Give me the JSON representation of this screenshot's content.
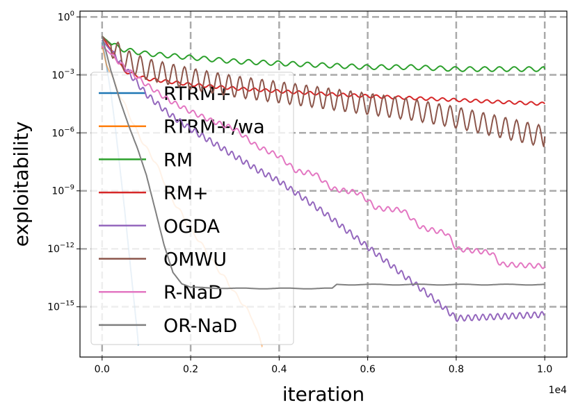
{
  "chart_data": {
    "type": "line",
    "xlabel": "iteration",
    "ylabel": "exploitability",
    "x_offset_label": "1e4",
    "xlim": [
      -0.05,
      1.05
    ],
    "ylog": true,
    "ylim_exponents": [
      -17.6,
      0.3
    ],
    "x_ticks": [
      {
        "value": 0.0,
        "label": "0.0"
      },
      {
        "value": 0.2,
        "label": "0.2"
      },
      {
        "value": 0.4,
        "label": "0.4"
      },
      {
        "value": 0.6,
        "label": "0.6"
      },
      {
        "value": 0.8,
        "label": "0.8"
      },
      {
        "value": 1.0,
        "label": "1.0"
      }
    ],
    "y_ticks": [
      {
        "exp": 0,
        "base": "10",
        "sup": "0"
      },
      {
        "exp": -3,
        "base": "10",
        "sup": "−3"
      },
      {
        "exp": -6,
        "base": "10",
        "sup": "−6"
      },
      {
        "exp": -9,
        "base": "10",
        "sup": "−9"
      },
      {
        "exp": -12,
        "base": "10",
        "sup": "−12"
      },
      {
        "exp": -15,
        "base": "10",
        "sup": "−15"
      }
    ],
    "grid": true,
    "legend_position": "left",
    "series": [
      {
        "name": "RTRM+",
        "color": "#1f77b4",
        "alpha": 0.5,
        "points": [
          [
            0.0,
            -1.2
          ],
          [
            0.01,
            -2.5
          ],
          [
            0.02,
            -4.0
          ],
          [
            0.03,
            -5.8
          ],
          [
            0.04,
            -7.8
          ],
          [
            0.05,
            -9.8
          ],
          [
            0.06,
            -12.0
          ],
          [
            0.07,
            -14.2
          ],
          [
            0.08,
            -16.4
          ],
          [
            0.082,
            -17.0
          ]
        ]
      },
      {
        "name": "RTRM+/wa",
        "color": "#ff7f0e",
        "alpha": 0.5,
        "points": [
          [
            0.0,
            -1.5
          ],
          [
            0.01,
            -2.5
          ],
          [
            0.02,
            -3.0
          ],
          [
            0.04,
            -4.0
          ],
          [
            0.06,
            -5.0
          ],
          [
            0.08,
            -6.0
          ],
          [
            0.1,
            -6.8
          ],
          [
            0.12,
            -7.5
          ],
          [
            0.14,
            -8.5
          ],
          [
            0.16,
            -9.5
          ],
          [
            0.18,
            -10.2
          ],
          [
            0.2,
            -11.0
          ],
          [
            0.22,
            -11.6
          ],
          [
            0.24,
            -12.3
          ],
          [
            0.26,
            -13.0
          ],
          [
            0.28,
            -13.6
          ],
          [
            0.3,
            -14.3
          ],
          [
            0.32,
            -14.9
          ],
          [
            0.34,
            -15.6
          ],
          [
            0.35,
            -16.3
          ],
          [
            0.36,
            -16.9
          ],
          [
            0.362,
            -17.0
          ]
        ]
      },
      {
        "name": "RM",
        "color": "#2ca02c",
        "alpha": 1,
        "points": [
          [
            0.0,
            -1.0
          ],
          [
            0.02,
            -1.4
          ],
          [
            0.05,
            -1.7
          ],
          [
            0.1,
            -1.9
          ],
          [
            0.2,
            -2.1
          ],
          [
            0.3,
            -2.3
          ],
          [
            0.4,
            -2.4
          ],
          [
            0.5,
            -2.5
          ],
          [
            0.6,
            -2.6
          ],
          [
            0.7,
            -2.6
          ],
          [
            0.8,
            -2.7
          ],
          [
            0.9,
            -2.7
          ],
          [
            1.0,
            -2.7
          ]
        ]
      },
      {
        "name": "RM+",
        "color": "#d62728",
        "alpha": 1,
        "points": [
          [
            0.0,
            -1.0
          ],
          [
            0.05,
            -2.8
          ],
          [
            0.1,
            -3.2
          ],
          [
            0.2,
            -3.5
          ],
          [
            0.3,
            -3.7
          ],
          [
            0.4,
            -3.85
          ],
          [
            0.5,
            -3.98
          ],
          [
            0.6,
            -4.1
          ],
          [
            0.7,
            -4.2
          ],
          [
            0.8,
            -4.3
          ],
          [
            0.9,
            -4.4
          ],
          [
            1.0,
            -4.5
          ]
        ]
      },
      {
        "name": "OGDA",
        "color": "#9467bd",
        "alpha": 1,
        "points": [
          [
            0.0,
            -1.2
          ],
          [
            0.05,
            -2.6
          ],
          [
            0.1,
            -4.0
          ],
          [
            0.15,
            -5.0
          ],
          [
            0.2,
            -5.8
          ],
          [
            0.25,
            -6.5
          ],
          [
            0.3,
            -7.2
          ],
          [
            0.35,
            -7.9
          ],
          [
            0.4,
            -8.5
          ],
          [
            0.45,
            -9.3
          ],
          [
            0.5,
            -10.1
          ],
          [
            0.55,
            -11.0
          ],
          [
            0.6,
            -11.9
          ],
          [
            0.65,
            -12.8
          ],
          [
            0.7,
            -13.7
          ],
          [
            0.75,
            -14.6
          ],
          [
            0.8,
            -15.6
          ],
          [
            0.9,
            -15.5
          ],
          [
            1.0,
            -15.4
          ]
        ]
      },
      {
        "name": "OMWU",
        "color": "#8c564b",
        "alpha": 1,
        "points": [
          [
            0.0,
            -1.0
          ],
          [
            0.05,
            -2.2
          ],
          [
            0.1,
            -2.7
          ],
          [
            0.2,
            -3.2
          ],
          [
            0.3,
            -3.6
          ],
          [
            0.4,
            -3.9
          ],
          [
            0.5,
            -4.2
          ],
          [
            0.6,
            -4.5
          ],
          [
            0.7,
            -4.8
          ],
          [
            0.8,
            -5.2
          ],
          [
            0.9,
            -5.7
          ],
          [
            1.0,
            -6.2
          ]
        ]
      },
      {
        "name": "R-NaD",
        "color": "#e377c2",
        "alpha": 1,
        "points": [
          [
            0.0,
            -1.5
          ],
          [
            0.05,
            -2.6
          ],
          [
            0.1,
            -3.5
          ],
          [
            0.15,
            -4.3
          ],
          [
            0.2,
            -4.9
          ],
          [
            0.25,
            -5.4
          ],
          [
            0.3,
            -5.8
          ],
          [
            0.35,
            -6.7
          ],
          [
            0.4,
            -7.2
          ],
          [
            0.44,
            -8.0
          ],
          [
            0.48,
            -8.1
          ],
          [
            0.52,
            -8.9
          ],
          [
            0.58,
            -9.1
          ],
          [
            0.62,
            -9.9
          ],
          [
            0.68,
            -10.0
          ],
          [
            0.72,
            -10.9
          ],
          [
            0.78,
            -11.2
          ],
          [
            0.8,
            -12.0
          ],
          [
            0.88,
            -12.2
          ],
          [
            0.9,
            -12.8
          ],
          [
            1.0,
            -12.9
          ]
        ]
      },
      {
        "name": "OR-NaD",
        "color": "#7f7f7f",
        "alpha": 1,
        "points": [
          [
            0.0,
            -1.0
          ],
          [
            0.02,
            -2.8
          ],
          [
            0.04,
            -4.3
          ],
          [
            0.06,
            -5.6
          ],
          [
            0.08,
            -6.8
          ],
          [
            0.1,
            -8.2
          ],
          [
            0.12,
            -10.0
          ],
          [
            0.14,
            -11.8
          ],
          [
            0.16,
            -13.2
          ],
          [
            0.18,
            -13.8
          ],
          [
            0.2,
            -14.0
          ],
          [
            0.3,
            -14.05
          ],
          [
            0.4,
            -14.05
          ],
          [
            0.52,
            -14.05
          ],
          [
            0.53,
            -13.85
          ],
          [
            0.7,
            -13.85
          ],
          [
            1.0,
            -13.85
          ]
        ]
      }
    ]
  }
}
